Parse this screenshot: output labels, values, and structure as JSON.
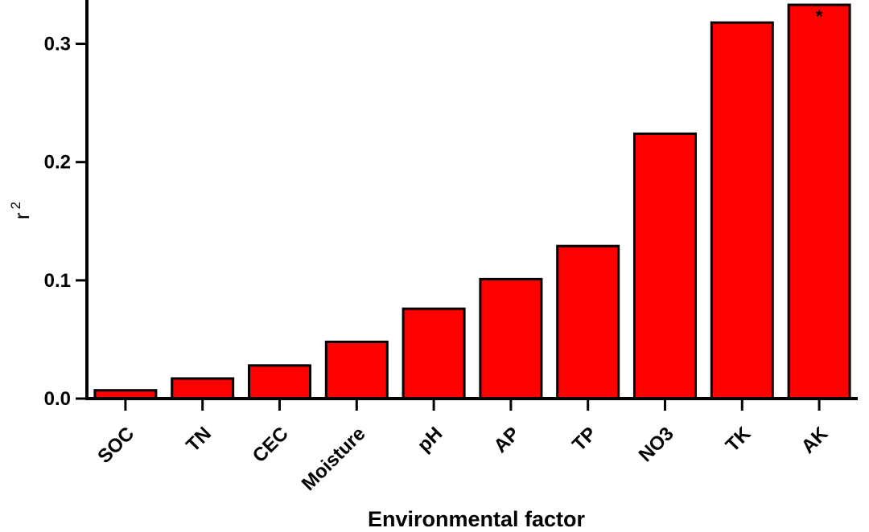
{
  "chart_data": {
    "type": "bar",
    "categories": [
      "SOC",
      "TN",
      "CEC",
      "Moisture",
      "pH",
      "AP",
      "TP",
      "NO3",
      "TK",
      "AK"
    ],
    "values": [
      0.007,
      0.017,
      0.028,
      0.048,
      0.076,
      0.101,
      0.129,
      0.224,
      0.318,
      0.333
    ],
    "xlabel": "Environmental factor",
    "ylabel": {
      "base": "r",
      "superscript": "2"
    },
    "ylim": [
      0,
      0.333
    ],
    "yticks": [
      0.0,
      0.1,
      0.2,
      0.3
    ],
    "ytick_labels": [
      "0.0",
      "0.1",
      "0.2",
      "0.3"
    ],
    "bar_color": "#ff0000",
    "bar_edge_color": "#000000",
    "annotations": [
      {
        "category": "AK",
        "text": "*"
      }
    ],
    "grid": false,
    "legend": "none"
  }
}
